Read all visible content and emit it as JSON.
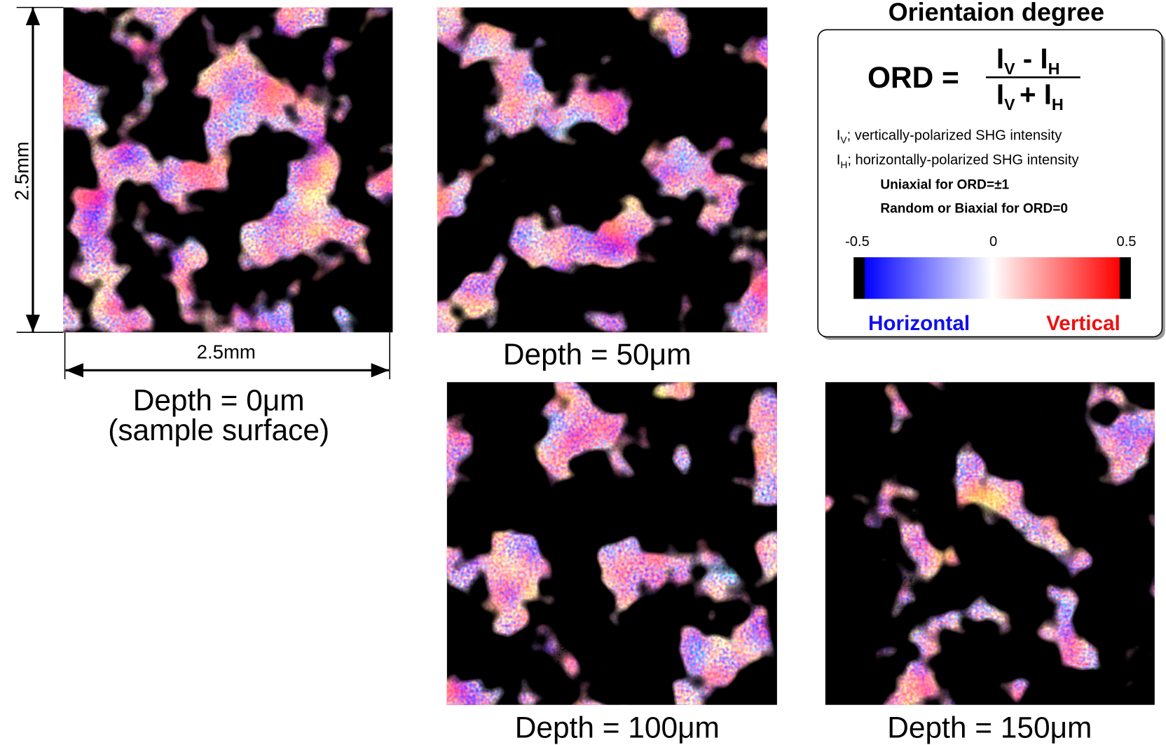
{
  "panels": [
    {
      "label": "Depth = 0μm",
      "sublabel": "(sample surface)",
      "height_label": "2.5mm",
      "width_label": "2.5mm"
    },
    {
      "label": "Depth = 50μm"
    },
    {
      "label": "Depth = 100μm"
    },
    {
      "label": "Depth = 150μm"
    }
  ],
  "legend": {
    "title": "Orientaion degree",
    "formula": {
      "lhs": "ORD =",
      "numerator": {
        "a": "I",
        "a_sub": "V",
        "op": " - ",
        "b": "I",
        "b_sub": "H"
      },
      "denominator": {
        "a": "I",
        "a_sub": "V",
        "op": "+ ",
        "b": "I",
        "b_sub": "H"
      }
    },
    "definitions": [
      {
        "symbol": "I",
        "sub": "V",
        "text": "; vertically-polarized SHG intensity"
      },
      {
        "symbol": "I",
        "sub": "H",
        "text": "; horizontally-polarized SHG intensity"
      }
    ],
    "notes": [
      "Uniaxial for ORD=±1",
      "Random or Biaxial for ORD=0"
    ],
    "colorbar_ticks": [
      "-0.5",
      "0",
      "0.5"
    ],
    "low_label": "Horizontal",
    "high_label": "Vertical"
  }
}
